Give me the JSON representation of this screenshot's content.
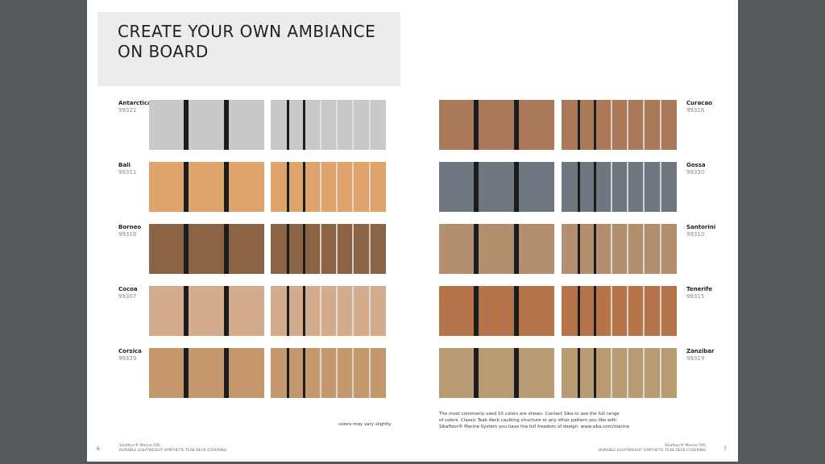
{
  "header": {
    "title": [
      "CREATE YOUR OWN AMBIANCE",
      "ON BOARD"
    ]
  },
  "left": [
    {
      "name": "Antarctica",
      "code": "99321"
    },
    {
      "name": "Bali",
      "code": "99311"
    },
    {
      "name": "Borneo",
      "code": "99318"
    },
    {
      "name": "Cocoa",
      "code": "99307"
    },
    {
      "name": "Corsica",
      "code": "99329"
    }
  ],
  "right": [
    {
      "name": "Curacao",
      "code": "99316"
    },
    {
      "name": "Gossa",
      "code": "99330"
    },
    {
      "name": "Santorini",
      "code": "99310"
    },
    {
      "name": "Tenerife",
      "code": "99315"
    },
    {
      "name": "Zanzibar",
      "code": "99319"
    }
  ],
  "disclaimer": "colors may vary slightly",
  "note": [
    "The most commonly used 10 colors are shown. Contact Sika to see the full range",
    "of colors. Classic Teak deck caulking structure or any other pattern you like with",
    "Sikafloor® Marine System you have the full freedom of design: www.sika.com/marine"
  ],
  "footer": {
    "left": {
      "page": "6",
      "product": "Sikafloor® Marine-595",
      "tagline": "DURABLE LIGHTWEIGHT SYNTHETIC TEAK DECK COVERING"
    },
    "right": {
      "page": "7",
      "product": "Sikafloor® Marine-595",
      "tagline": "DURABLE LIGHTWEIGHT SYNTHETIC TEAK DECK COVERING"
    }
  }
}
